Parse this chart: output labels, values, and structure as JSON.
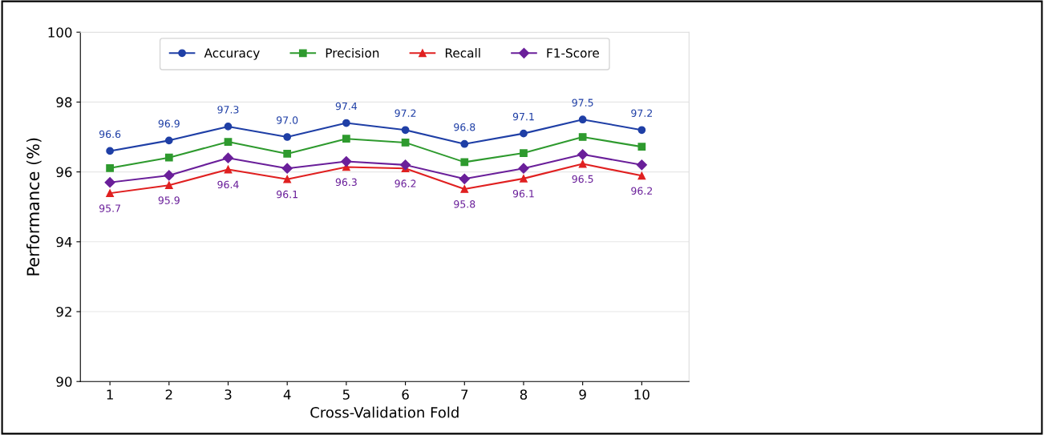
{
  "chart_data": {
    "type": "line",
    "xlabel": "Cross-Validation Fold",
    "ylabel": "Performance (%)",
    "x": [
      1,
      2,
      3,
      4,
      5,
      6,
      7,
      8,
      9,
      10
    ],
    "xlim": [
      0.5,
      10.8
    ],
    "xticks": [
      1,
      2,
      3,
      4,
      5,
      6,
      7,
      8,
      9,
      10
    ],
    "ylim": [
      90,
      100
    ],
    "yticks": [
      90,
      92,
      94,
      96,
      98,
      100
    ],
    "grid": "y",
    "legend": "top",
    "line_style": "solid",
    "series": [
      {
        "name": "Accuracy",
        "color": "#1f3fa6",
        "marker": "circle",
        "values": [
          96.6,
          96.9,
          97.3,
          97.0,
          97.4,
          97.2,
          96.8,
          97.1,
          97.5,
          97.2
        ],
        "value_labels": [
          "96.6",
          "96.9",
          "97.3",
          "97.0",
          "97.4",
          "97.2",
          "96.8",
          "97.1",
          "97.5",
          "97.2"
        ]
      },
      {
        "name": "Precision",
        "color": "#2e9a2e",
        "marker": "square",
        "values": [
          96.11,
          96.41,
          96.86,
          96.52,
          96.95,
          96.84,
          96.28,
          96.54,
          97.0,
          96.72
        ]
      },
      {
        "name": "Recall",
        "color": "#e02020",
        "marker": "triangle",
        "values": [
          95.39,
          95.62,
          96.07,
          95.79,
          96.14,
          96.1,
          95.51,
          95.81,
          96.23,
          95.89
        ]
      },
      {
        "name": "F1-Score",
        "color": "#6a1f9a",
        "marker": "diamond",
        "values": [
          95.7,
          95.9,
          96.4,
          96.1,
          96.3,
          96.2,
          95.8,
          96.1,
          96.5,
          96.2
        ],
        "value_labels": [
          "95.7",
          "95.9",
          "96.4",
          "96.1",
          "96.3",
          "96.2",
          "95.8",
          "96.1",
          "96.5",
          "96.2"
        ]
      }
    ]
  }
}
